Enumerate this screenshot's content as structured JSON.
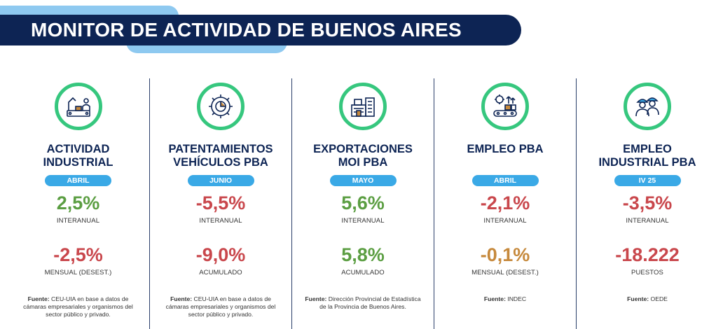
{
  "header": {
    "title": "MONITOR DE ACTIVIDAD DE BUENOS AIRES"
  },
  "colors": {
    "navy": "#0d2454",
    "accent_green": "#36c77e",
    "pill_blue": "#3aa9e6",
    "positive": "#5b9e42",
    "negative": "#c9474c",
    "neutral": "#c6893c"
  },
  "columns": [
    {
      "icon": "factory-workers-icon",
      "title": "ACTIVIDAD\nINDUSTRIAL",
      "period": "ABRIL",
      "value1": "2,5%",
      "label1": "INTERANUAL",
      "color1": "green",
      "value2": "-2,5%",
      "label2": "MENSUAL (DESEST.)",
      "color2": "red",
      "source_label": "Fuente:",
      "source_text": " CEU-UIA en base a datos de cámaras empresariales y organismos del sector público y privado."
    },
    {
      "icon": "gear-chart-icon",
      "title": "PATENTAMIENTOS\nVEHÍCULOS PBA",
      "period": "JUNIO",
      "value1": "-5,5%",
      "label1": "INTERANUAL",
      "color1": "red",
      "value2": "-9,0%",
      "label2": "ACUMULADO",
      "color2": "red",
      "source_label": "Fuente:",
      "source_text": " CEU-UIA en base a datos de cámaras empresariales y organismos del sector público y privado."
    },
    {
      "icon": "factory-building-icon",
      "title": "EXPORTACIONES\nMOI PBA",
      "period": "MAYO",
      "value1": "5,6%",
      "label1": "INTERANUAL",
      "color1": "green",
      "value2": "5,8%",
      "label2": "ACUMULADO",
      "color2": "green",
      "source_label": "Fuente:",
      "source_text": " Dirección Provincial de Estadística de la  Provincia de Buenos Aires."
    },
    {
      "icon": "production-line-icon",
      "title": "EMPLEO PBA",
      "period": "ABRIL",
      "value1": "-2,1%",
      "label1": "INTERANUAL",
      "color1": "red",
      "value2": "-0,1%",
      "label2": "MENSUAL (DESEST.)",
      "color2": "orange",
      "source_label": "Fuente:",
      "source_text": " INDEC"
    },
    {
      "icon": "hardhat-workers-icon",
      "title": "EMPLEO\nINDUSTRIAL PBA",
      "period": "IV 25",
      "value1": "-3,5%",
      "label1": "INTERANUAL",
      "color1": "red",
      "value2": "-18.222",
      "label2": "PUESTOS",
      "color2": "red",
      "source_label": "Fuente:",
      "source_text": " OEDE"
    }
  ]
}
